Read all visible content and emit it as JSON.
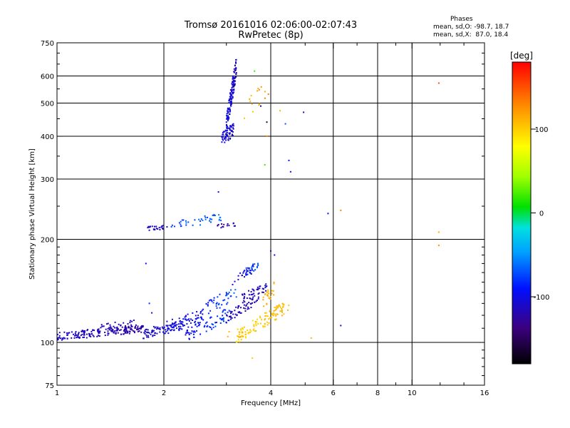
{
  "chart_data": {
    "type": "scatter",
    "title": "Tromsø 20161016 02:06:00-02:07:43",
    "subtitle": "RwPretec (8p)",
    "xlabel": "Frequency [MHz]",
    "ylabel": "Stationary phase Virtual Height [km]",
    "x_scale": "log",
    "y_scale": "log",
    "xlim": [
      1,
      16
    ],
    "ylim": [
      75,
      750
    ],
    "x_ticks": [
      1,
      2,
      4,
      6,
      8,
      10,
      16
    ],
    "x_tick_labels": [
      "1",
      "2",
      "4",
      "6",
      "8",
      "10",
      "16"
    ],
    "x_grid": [
      2,
      4,
      6,
      8,
      10
    ],
    "y_ticks": [
      75,
      100,
      200,
      300,
      400,
      500,
      600,
      750
    ],
    "y_tick_labels": [
      "75",
      "100",
      "200",
      "300",
      "400",
      "500",
      "600",
      "750"
    ],
    "y_grid": [
      100,
      200,
      300,
      400,
      500,
      600
    ],
    "grid": true,
    "colorbar": {
      "label": "[deg]",
      "range": [
        -180,
        180
      ],
      "ticks": [
        100,
        0,
        -100
      ],
      "tick_labels": [
        "100",
        "0",
        "-100"
      ]
    },
    "stats": {
      "header": "Phases",
      "o_line": "mean, sd,O: -98.7, 18.7",
      "x_line": "mean, sd,X:  87.0, 18.4"
    },
    "clusters": [
      {
        "x0": 1.0,
        "x1": 1.75,
        "y0": 104,
        "y1": 110,
        "phase0": -110,
        "phase1": -125,
        "n": 190,
        "spread_y": 0.012,
        "spread_p": 6
      },
      {
        "x0": 1.3,
        "x1": 1.65,
        "y0": 110,
        "y1": 114,
        "phase0": -115,
        "phase1": -120,
        "n": 30,
        "spread_y": 0.01,
        "spread_p": 6
      },
      {
        "x0": 1.75,
        "x1": 2.3,
        "y0": 106,
        "y1": 113,
        "phase0": -110,
        "phase1": -100,
        "n": 80,
        "spread_y": 0.014,
        "spread_p": 8
      },
      {
        "x0": 2.0,
        "x1": 2.6,
        "y0": 110,
        "y1": 120,
        "phase0": -105,
        "phase1": -95,
        "n": 60,
        "spread_y": 0.02,
        "spread_p": 8
      },
      {
        "x0": 2.3,
        "x1": 3.1,
        "y0": 105,
        "y1": 122,
        "phase0": -100,
        "phase1": -70,
        "n": 70,
        "spread_y": 0.02,
        "spread_p": 10
      },
      {
        "x0": 2.6,
        "x1": 3.2,
        "y0": 125,
        "y1": 140,
        "phase0": -90,
        "phase1": -70,
        "n": 40,
        "spread_y": 0.02,
        "spread_p": 10
      },
      {
        "x0": 3.0,
        "x1": 3.7,
        "y0": 118,
        "y1": 135,
        "phase0": -115,
        "phase1": -120,
        "n": 60,
        "spread_y": 0.015,
        "spread_p": 6
      },
      {
        "x0": 3.3,
        "x1": 3.9,
        "y0": 135,
        "y1": 145,
        "phase0": -120,
        "phase1": -110,
        "n": 40,
        "spread_y": 0.012,
        "spread_p": 6
      },
      {
        "x0": 3.4,
        "x1": 3.7,
        "y0": 160,
        "y1": 170,
        "phase0": -80,
        "phase1": -70,
        "n": 25,
        "spread_y": 0.012,
        "spread_p": 8
      },
      {
        "x0": 3.1,
        "x1": 3.6,
        "y0": 150,
        "y1": 165,
        "phase0": -115,
        "phase1": -105,
        "n": 20,
        "spread_y": 0.012,
        "spread_p": 6
      },
      {
        "x0": 3.2,
        "x1": 4.5,
        "y0": 104,
        "y1": 128,
        "phase0": 95,
        "phase1": 110,
        "n": 110,
        "spread_y": 0.02,
        "spread_p": 8
      },
      {
        "x0": 3.8,
        "x1": 4.1,
        "y0": 130,
        "y1": 145,
        "phase0": 115,
        "phase1": 110,
        "n": 25,
        "spread_y": 0.02,
        "spread_p": 8
      },
      {
        "x0": 3.0,
        "x1": 3.35,
        "y0": 105,
        "y1": 106,
        "phase0": 110,
        "phase1": 115,
        "n": 10,
        "spread_y": 0.01,
        "spread_p": 5
      },
      {
        "x0": 1.8,
        "x1": 2.05,
        "y0": 215,
        "y1": 217,
        "phase0": -115,
        "phase1": -110,
        "n": 25,
        "spread_y": 0.006,
        "spread_p": 6
      },
      {
        "x0": 2.05,
        "x1": 2.9,
        "y0": 218,
        "y1": 232,
        "phase0": -75,
        "phase1": -65,
        "n": 40,
        "spread_y": 0.012,
        "spread_p": 10
      },
      {
        "x0": 2.8,
        "x1": 3.2,
        "y0": 218,
        "y1": 221,
        "phase0": -125,
        "phase1": -120,
        "n": 15,
        "spread_y": 0.006,
        "spread_p": 5
      },
      {
        "x0": 2.9,
        "x1": 3.15,
        "y0": 390,
        "y1": 420,
        "phase0": -105,
        "phase1": -110,
        "n": 60,
        "spread_y": 0.02,
        "spread_p": 6
      },
      {
        "x0": 3.0,
        "x1": 3.2,
        "y0": 430,
        "y1": 640,
        "phase0": -100,
        "phase1": -115,
        "n": 130,
        "spread_y": 0.03,
        "spread_p": 8
      },
      {
        "x0": 3.35,
        "x1": 4.0,
        "y0": 470,
        "y1": 560,
        "phase0": 100,
        "phase1": 130,
        "n": 15,
        "spread_y": 0.03,
        "spread_p": 10
      }
    ],
    "points": [
      [
        1.78,
        170,
        -100
      ],
      [
        1.82,
        130,
        -80
      ],
      [
        1.85,
        122,
        -110
      ],
      [
        2.85,
        275,
        -100
      ],
      [
        3.55,
        90,
        100
      ],
      [
        3.85,
        330,
        20
      ],
      [
        4.0,
        185,
        -100
      ],
      [
        4.1,
        180,
        -110
      ],
      [
        4.5,
        340,
        -90
      ],
      [
        4.55,
        315,
        -100
      ],
      [
        4.95,
        470,
        -110
      ],
      [
        5.2,
        103,
        110
      ],
      [
        5.8,
        238,
        -90
      ],
      [
        6.3,
        112,
        -110
      ],
      [
        6.3,
        243,
        130
      ],
      [
        11.9,
        572,
        150
      ],
      [
        11.9,
        210,
        115
      ],
      [
        11.9,
        192,
        125
      ],
      [
        3.6,
        620,
        20
      ],
      [
        3.9,
        440,
        -160
      ],
      [
        3.9,
        400,
        130
      ],
      [
        4.25,
        475,
        110
      ],
      [
        4.4,
        435,
        -70
      ],
      [
        3.75,
        490,
        -120
      ]
    ]
  }
}
